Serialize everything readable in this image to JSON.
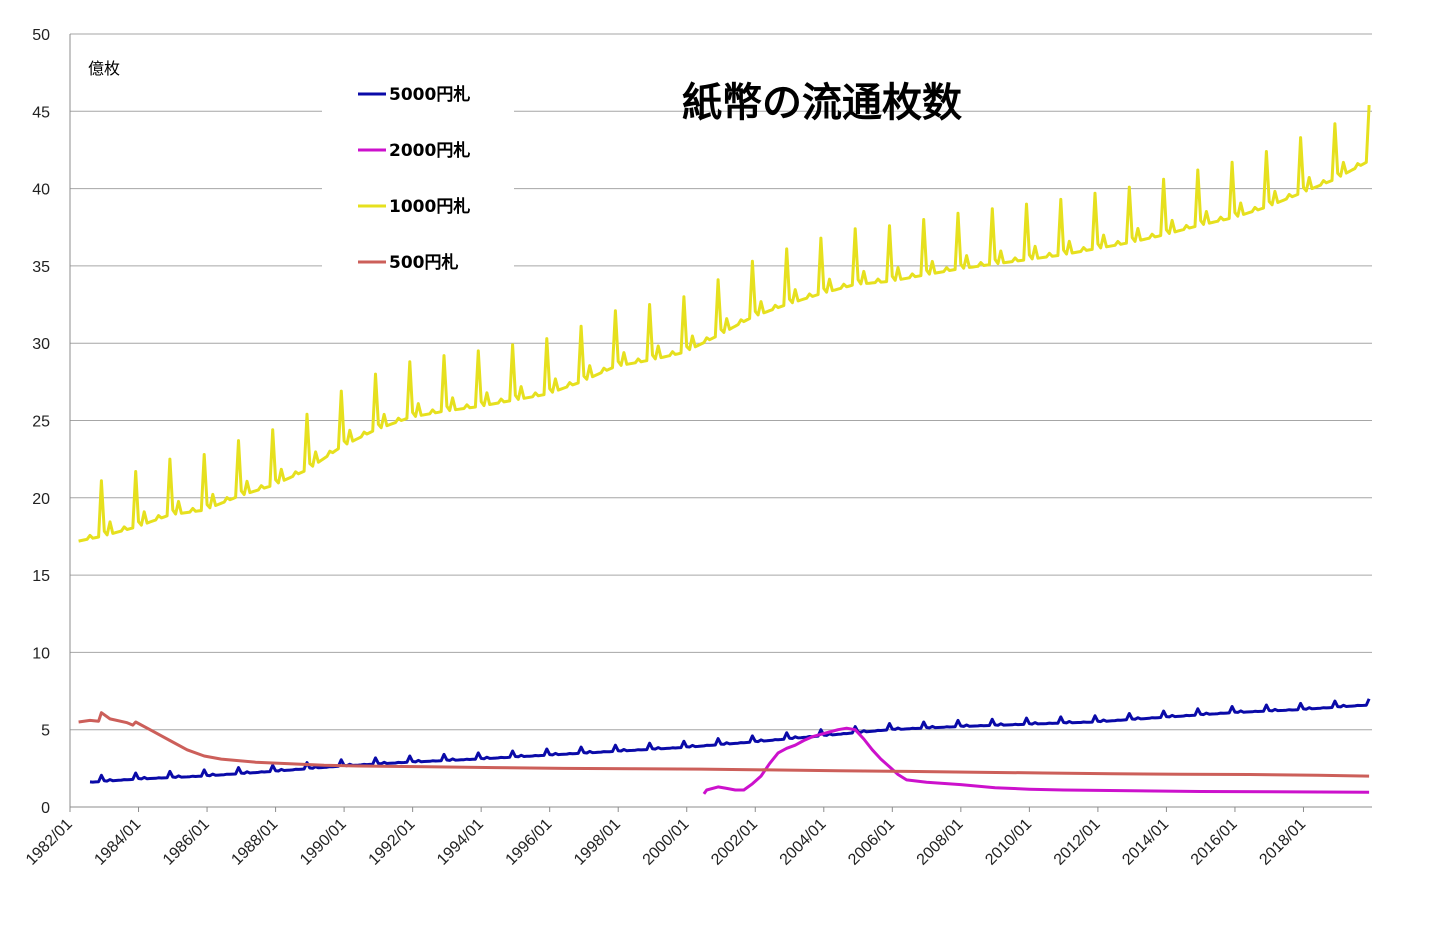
{
  "chart_data": {
    "type": "line",
    "title": "紙幣の流通枚数",
    "ylabel": "億枚",
    "xlabel": "",
    "ylim": [
      0,
      50
    ],
    "yticks": [
      0,
      5,
      10,
      15,
      20,
      25,
      30,
      35,
      40,
      45,
      50
    ],
    "xlim": [
      "1982/01",
      "2019/12"
    ],
    "xticks": [
      "1982/01",
      "1984/01",
      "1986/01",
      "1988/01",
      "1990/01",
      "1992/01",
      "1994/01",
      "1996/01",
      "1998/01",
      "2000/01",
      "2002/01",
      "2004/01",
      "2006/01",
      "2008/01",
      "2010/01",
      "2012/01",
      "2014/01",
      "2016/01",
      "2018/01"
    ],
    "grid": "horizontal",
    "legend_position": "top-left",
    "series": [
      {
        "name": "5000円札",
        "color": "#0a0aa8",
        "x": [
          "1982/08",
          "1983/12",
          "1985/12",
          "1987/12",
          "1989/12",
          "1991/12",
          "1993/12",
          "1995/12",
          "1997/12",
          "1999/12",
          "2001/12",
          "2003/12",
          "2005/12",
          "2007/12",
          "2009/12",
          "2011/12",
          "2013/12",
          "2015/12",
          "2017/12",
          "2019/12"
        ],
        "y": [
          1.6,
          1.8,
          2.0,
          2.3,
          2.65,
          2.9,
          3.1,
          3.35,
          3.6,
          3.85,
          4.2,
          4.6,
          5.0,
          5.2,
          5.35,
          5.5,
          5.8,
          6.1,
          6.3,
          6.6
        ],
        "dec_peak": 0.4
      },
      {
        "name": "2000円札",
        "color": "#cc11cc",
        "x": [
          "2000/07",
          "2000/08",
          "2000/12",
          "2001/03",
          "2001/06",
          "2001/09",
          "2001/12",
          "2002/03",
          "2002/06",
          "2002/09",
          "2002/12",
          "2003/03",
          "2003/06",
          "2003/09",
          "2003/12",
          "2004/03",
          "2004/06",
          "2004/09",
          "2004/12",
          "2005/03",
          "2005/06",
          "2005/09",
          "2005/12",
          "2006/03",
          "2006/06",
          "2007/01",
          "2008/01",
          "2009/01",
          "2010/01",
          "2011/01",
          "2013/01",
          "2015/01",
          "2017/01",
          "2019/12"
        ],
        "y": [
          0.85,
          1.1,
          1.3,
          1.2,
          1.1,
          1.1,
          1.5,
          2.0,
          2.8,
          3.5,
          3.8,
          4.0,
          4.3,
          4.55,
          4.7,
          4.85,
          5.0,
          5.1,
          5.0,
          4.4,
          3.7,
          3.1,
          2.6,
          2.1,
          1.75,
          1.6,
          1.45,
          1.25,
          1.15,
          1.1,
          1.05,
          1.0,
          0.98,
          0.95
        ]
      },
      {
        "name": "1000円札",
        "color": "#e6e01e",
        "x": [
          "1982/04",
          "1982/12",
          "1983/12",
          "1984/12",
          "1985/12",
          "1986/12",
          "1987/12",
          "1988/12",
          "1989/12",
          "1990/12",
          "1991/12",
          "1992/12",
          "1993/12",
          "1994/12",
          "1995/12",
          "1996/12",
          "1997/12",
          "1998/12",
          "1999/12",
          "2000/12",
          "2001/12",
          "2002/12",
          "2003/12",
          "2004/12",
          "2005/12",
          "2006/12",
          "2007/12",
          "2008/12",
          "2009/12",
          "2010/12",
          "2011/12",
          "2012/12",
          "2013/12",
          "2014/12",
          "2015/12",
          "2016/12",
          "2017/12",
          "2018/12",
          "2019/12"
        ],
        "y": [
          17.2,
          17.5,
          18.1,
          18.9,
          19.2,
          20.1,
          20.8,
          21.8,
          23.3,
          24.4,
          25.2,
          25.6,
          25.9,
          26.3,
          26.7,
          27.5,
          28.5,
          28.9,
          29.4,
          30.5,
          31.7,
          32.5,
          33.2,
          33.8,
          34.0,
          34.4,
          34.8,
          35.1,
          35.4,
          35.7,
          36.1,
          36.5,
          37.0,
          37.6,
          38.1,
          38.8,
          39.7,
          40.6,
          41.8
        ],
        "dec_peak": 3.6
      },
      {
        "name": "500円札",
        "color": "#cc5f5a",
        "x": [
          "1982/04",
          "1982/08",
          "1982/11",
          "1982/12",
          "1983/03",
          "1983/09",
          "1983/11",
          "1983/12",
          "1984/06",
          "1984/12",
          "1985/06",
          "1985/12",
          "1986/06",
          "1987/06",
          "1988/06",
          "1989/06",
          "1990/06",
          "1992/06",
          "1994/06",
          "1996/06",
          "1998/06",
          "2000/06",
          "2002/06",
          "2004/06",
          "2006/06",
          "2008/06",
          "2010/06",
          "2012/06",
          "2014/06",
          "2016/06",
          "2018/06",
          "2019/12"
        ],
        "y": [
          5.5,
          5.6,
          5.55,
          6.1,
          5.7,
          5.45,
          5.3,
          5.5,
          4.9,
          4.3,
          3.7,
          3.3,
          3.1,
          2.9,
          2.8,
          2.7,
          2.65,
          2.6,
          2.55,
          2.5,
          2.48,
          2.45,
          2.4,
          2.35,
          2.3,
          2.25,
          2.2,
          2.15,
          2.12,
          2.1,
          2.05,
          2.0
        ]
      }
    ]
  }
}
